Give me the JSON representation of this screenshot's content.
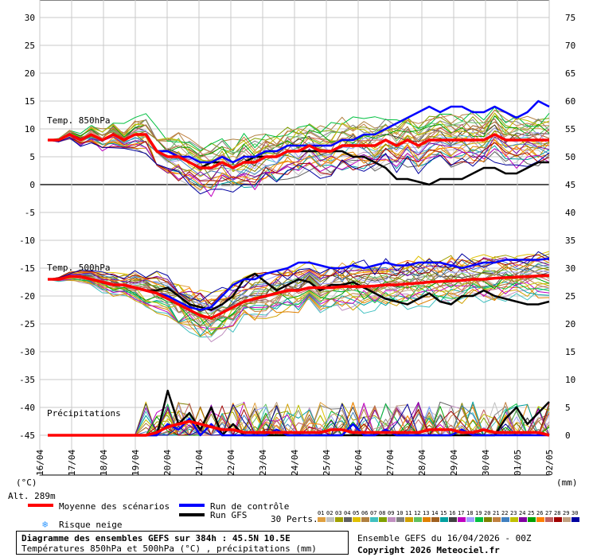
{
  "chart_data": {
    "type": "line",
    "title": "Diagramme des ensembles GEFS sur 384h : 45.5N 10.5E",
    "subtitle": "Températures 850hPa et 500hPa (°C) , précipitations (mm)",
    "left_axis_unit": "(°C)",
    "right_axis_unit": "(mm)",
    "left_ticks": [
      30,
      25,
      20,
      15,
      10,
      5,
      0,
      -5,
      -10,
      -15,
      -20,
      -25,
      -30,
      -35,
      -40,
      -45
    ],
    "right_ticks": [
      75,
      70,
      65,
      60,
      55,
      50,
      45,
      40,
      35,
      30,
      25,
      20,
      15,
      10,
      5,
      0
    ],
    "ylim": [
      -50,
      31
    ],
    "x_labels": [
      "17/04",
      "18/04",
      "19/04",
      "20/04",
      "21/04",
      "22/04",
      "23/04",
      "24/04",
      "25/04",
      "26/04",
      "27/04",
      "28/04",
      "29/04",
      "30/04",
      "01/05",
      "02/05"
    ],
    "x_first_label": "16/04",
    "panel_labels": {
      "t850": "Temp. 850hPa",
      "t500": "Temp. 500hPa",
      "precip": "Précipitations"
    },
    "altitude_label": "Alt. 289m",
    "series": [
      {
        "name": "Moyenne des scénarios",
        "color": "#ff0000",
        "t850": [
          8,
          8,
          9,
          8,
          9,
          8,
          9,
          8,
          9,
          9,
          6,
          5,
          5,
          4,
          3,
          3,
          4,
          3,
          4,
          4,
          5,
          5,
          6,
          6,
          7,
          6,
          6,
          7,
          7,
          7,
          7,
          8,
          7,
          8,
          7,
          8,
          8,
          8,
          8,
          8,
          8,
          9,
          8,
          8,
          8,
          8,
          8
        ],
        "t500": [
          -17,
          -17,
          -16.5,
          -16.5,
          -17,
          -17.5,
          -18,
          -18,
          -18.5,
          -19,
          -19.5,
          -20.5,
          -21.5,
          -22.5,
          -23.5,
          -24,
          -23,
          -22,
          -21,
          -20.5,
          -20,
          -19.5,
          -19,
          -19,
          -18.5,
          -18.5,
          -18.5,
          -18.3,
          -18.3,
          -18.3,
          -18.2,
          -18,
          -18,
          -17.8,
          -17.7,
          -17.5,
          -17.4,
          -17.3,
          -17.2,
          -17,
          -17,
          -16.8,
          -16.7,
          -16.6,
          -16.5,
          -16.4,
          -16.3
        ],
        "precip": [
          0,
          0,
          0,
          0,
          0,
          0,
          0,
          0,
          0,
          0,
          0.5,
          1.5,
          2,
          2.5,
          2,
          1.5,
          1,
          1,
          0.5,
          0.5,
          0.5,
          0.5,
          0.5,
          0.5,
          0.5,
          0.5,
          1,
          1,
          0.5,
          0.5,
          0.5,
          0.5,
          0.5,
          0.5,
          0.5,
          1,
          1,
          1,
          0.5,
          0.5,
          1,
          0.5,
          0.5,
          0.5,
          0.5,
          0.5,
          0
        ]
      },
      {
        "name": "Run de contrôle",
        "color": "#0000ff",
        "t850": [
          8,
          8,
          9,
          8,
          9,
          8,
          9,
          8,
          9,
          9,
          6,
          6,
          5,
          5,
          4,
          4,
          5,
          4,
          5,
          5,
          6,
          6,
          7,
          7,
          7,
          7,
          7,
          8,
          8,
          9,
          9,
          10,
          11,
          12,
          13,
          14,
          13,
          14,
          14,
          13,
          13,
          14,
          13,
          12,
          13,
          15,
          14
        ],
        "t500": [
          -17,
          -17,
          -16.5,
          -16.5,
          -17,
          -17.5,
          -18,
          -18,
          -18.5,
          -19,
          -19.5,
          -20,
          -21,
          -22,
          -22.5,
          -22,
          -20,
          -18,
          -17,
          -17,
          -16,
          -15.5,
          -15,
          -14,
          -14,
          -14.5,
          -15,
          -15,
          -14.5,
          -15,
          -14.5,
          -14,
          -14.5,
          -14.5,
          -14,
          -14,
          -14,
          -14.5,
          -15,
          -14.5,
          -14,
          -14,
          -13.5,
          -13.5,
          -13.5,
          -13.5,
          -13.3
        ],
        "precip": [
          0,
          0,
          0,
          0,
          0,
          0,
          0,
          0,
          0,
          0,
          0,
          2,
          1,
          3,
          0,
          2,
          0,
          0,
          0,
          0,
          0,
          1,
          0,
          0,
          0,
          0,
          0,
          0,
          2,
          0,
          0,
          1,
          0,
          0,
          0,
          0,
          0,
          0,
          1,
          0,
          0,
          0,
          0,
          0,
          0,
          0,
          0
        ]
      },
      {
        "name": "Run GFS",
        "color": "#000000",
        "t850": [
          8,
          8,
          9,
          8,
          9,
          8,
          9,
          8,
          9,
          9,
          6,
          6,
          5,
          4,
          3,
          4,
          4,
          3,
          4,
          5,
          5,
          5,
          6,
          6,
          6,
          6,
          6,
          6,
          5,
          5,
          4,
          3,
          1,
          1,
          0.5,
          0,
          1,
          1,
          1,
          2,
          3,
          3,
          2,
          2,
          3,
          4,
          4
        ],
        "t500": [
          -17,
          -17,
          -16.5,
          -16.5,
          -17,
          -17.5,
          -18,
          -18,
          -18.5,
          -19,
          -19,
          -18.5,
          -20,
          -21.5,
          -22,
          -22.5,
          -21.5,
          -20,
          -17,
          -16,
          -17.5,
          -19,
          -18,
          -17,
          -17.5,
          -19,
          -18,
          -18,
          -17.5,
          -18.5,
          -19.5,
          -20.5,
          -21,
          -21.5,
          -20.5,
          -19.5,
          -21,
          -21.5,
          -20,
          -20,
          -19,
          -20,
          -20.5,
          -21,
          -21.5,
          -21.5,
          -21
        ],
        "precip": [
          0,
          0,
          0,
          0,
          0,
          0,
          0,
          0,
          0,
          0,
          0,
          8,
          2,
          4,
          1,
          5,
          0,
          2,
          0,
          0,
          0,
          0,
          0,
          0,
          0,
          0,
          0,
          0,
          0,
          0,
          0,
          0,
          0,
          0,
          0,
          0,
          0,
          0,
          0,
          0,
          0,
          0,
          3,
          5,
          2,
          4,
          6
        ]
      }
    ],
    "perturbation_count_label": "30 Perts.",
    "perturbation_labels": [
      "01",
      "02",
      "03",
      "04",
      "05",
      "06",
      "07",
      "08",
      "09",
      "10",
      "11",
      "12",
      "13",
      "14",
      "15",
      "16",
      "17",
      "18",
      "19",
      "20",
      "21",
      "22",
      "23",
      "24",
      "25",
      "26",
      "27",
      "28",
      "29",
      "30"
    ],
    "perturbation_colors": [
      "#e0a040",
      "#c0c0c0",
      "#a0a000",
      "#606060",
      "#e0c000",
      "#b08040",
      "#40c0c0",
      "#80a000",
      "#c090c0",
      "#808080",
      "#d0a000",
      "#60c060",
      "#e08000",
      "#a06020",
      "#00a0a0",
      "#404040",
      "#c000c0",
      "#a0a0ff",
      "#00c040",
      "#808000",
      "#c08040",
      "#4080c0",
      "#c0c000",
      "#8000a0",
      "#00a000",
      "#ff8000",
      "#c06060",
      "#a00000",
      "#c0a080",
      "#0000a0"
    ]
  },
  "legend": {
    "mean_label": "Moyenne des scénarios",
    "control_label": "Run de contrôle",
    "gfs_label": "Run GFS",
    "snow_label": "Risque neige",
    "snow_icon": "snowflake-icon"
  },
  "footer": {
    "title": "Diagramme des ensembles GEFS sur 384h : 45.5N 10.5E",
    "subtitle": "Températures 850hPa et 500hPa (°C) , précipitations (mm)",
    "run_info": "Ensemble GEFS du 16/04/2026 - 00Z",
    "copyright": "Copyright 2026 Meteociel.fr"
  }
}
